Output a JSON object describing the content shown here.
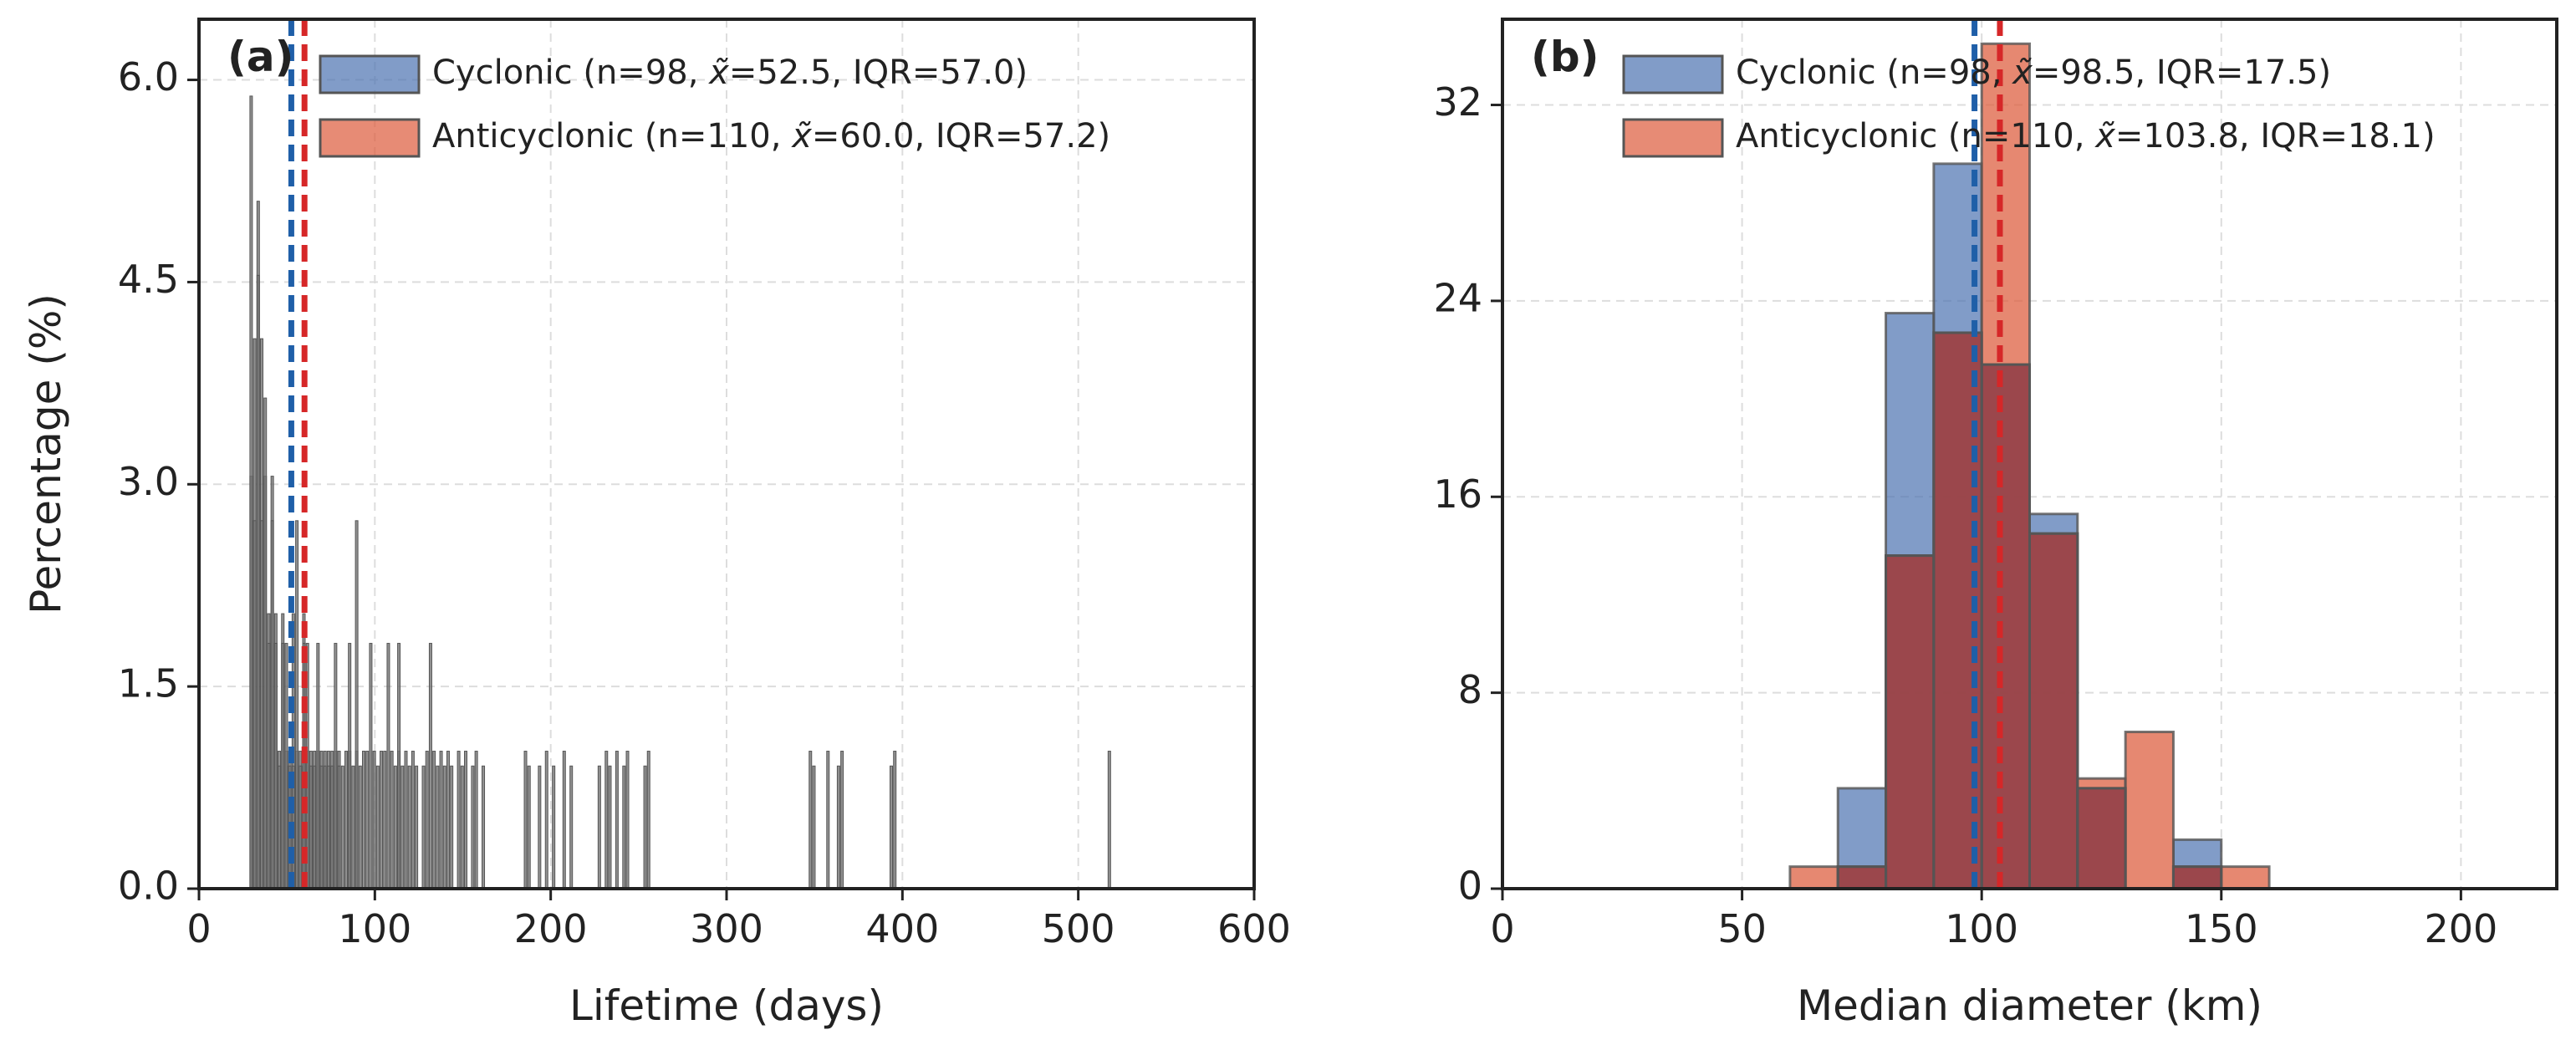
{
  "colors": {
    "cyclonic": "#4c72b0",
    "anticyclonic": "#dd5a3a",
    "cyclonic_line": "#1f5fa8",
    "anticyclonic_line": "#d62728",
    "overlap_dark": "#555555",
    "grid": "#dddddd",
    "axis": "#222222"
  },
  "chart_data": [
    {
      "type": "bar",
      "panel_label": "(a)",
      "title": "",
      "xlabel": "Lifetime (days)",
      "ylabel": "Percentage (%)",
      "xlim": [
        0,
        600
      ],
      "ylim": [
        0,
        6.45
      ],
      "xticks": [
        0,
        100,
        200,
        300,
        400,
        500,
        600
      ],
      "xtick_labels": [
        "0",
        "100",
        "200",
        "300",
        "400",
        "500",
        "600"
      ],
      "yticks": [
        0.0,
        1.5,
        3.0,
        4.5,
        6.0
      ],
      "ytick_labels": [
        "0.0",
        "1.5",
        "3.0",
        "4.5",
        "6.0"
      ],
      "grid": true,
      "legend_position": "top-right",
      "bin_width": 2,
      "series": [
        {
          "name": "Cyclonic (n=98, x̃=52.5, IQR=57.0)",
          "color_key": "cyclonic",
          "median": 52.5,
          "bins": [
            [
              29,
              3.06
            ],
            [
              31,
              4.08
            ],
            [
              33,
              5.1
            ],
            [
              35,
              4.08
            ],
            [
              37,
              3.06
            ],
            [
              39,
              2.04
            ],
            [
              41,
              3.06
            ],
            [
              43,
              2.04
            ],
            [
              45,
              1.02
            ],
            [
              47,
              2.04
            ],
            [
              49,
              1.02
            ],
            [
              51,
              1.02
            ],
            [
              53,
              2.04
            ],
            [
              55,
              1.02
            ],
            [
              57,
              1.02
            ],
            [
              59,
              2.04
            ],
            [
              61,
              1.02
            ],
            [
              63,
              1.02
            ],
            [
              65,
              1.02
            ],
            [
              67,
              1.02
            ],
            [
              69,
              1.02
            ],
            [
              71,
              1.02
            ],
            [
              73,
              1.02
            ],
            [
              75,
              1.02
            ],
            [
              77,
              1.02
            ],
            [
              79,
              1.02
            ],
            [
              83,
              1.02
            ],
            [
              85,
              1.02
            ],
            [
              89,
              1.02
            ],
            [
              93,
              1.02
            ],
            [
              95,
              1.02
            ],
            [
              99,
              1.02
            ],
            [
              103,
              1.02
            ],
            [
              105,
              1.02
            ],
            [
              109,
              1.02
            ],
            [
              113,
              1.02
            ],
            [
              117,
              1.02
            ],
            [
              121,
              1.02
            ],
            [
              129,
              1.02
            ],
            [
              133,
              1.02
            ],
            [
              137,
              1.02
            ],
            [
              141,
              1.02
            ],
            [
              147,
              1.02
            ],
            [
              151,
              1.02
            ],
            [
              157,
              1.02
            ],
            [
              185,
              1.02
            ],
            [
              197,
              1.02
            ],
            [
              207,
              1.02
            ],
            [
              231,
              1.02
            ],
            [
              237,
              1.02
            ],
            [
              243,
              1.02
            ],
            [
              255,
              1.02
            ],
            [
              347,
              1.02
            ],
            [
              357,
              1.02
            ],
            [
              365,
              1.02
            ],
            [
              395,
              1.02
            ],
            [
              517,
              1.02
            ]
          ]
        },
        {
          "name": "Anticyclonic (n=110, x̃=60.0, IQR=57.2)",
          "color_key": "anticyclonic",
          "median": 60.0,
          "bins": [
            [
              29,
              5.88
            ],
            [
              31,
              2.73
            ],
            [
              33,
              4.55
            ],
            [
              35,
              2.73
            ],
            [
              37,
              3.64
            ],
            [
              39,
              1.82
            ],
            [
              41,
              2.73
            ],
            [
              43,
              1.82
            ],
            [
              45,
              0.91
            ],
            [
              47,
              1.82
            ],
            [
              49,
              1.82
            ],
            [
              51,
              0.91
            ],
            [
              53,
              0.91
            ],
            [
              55,
              2.73
            ],
            [
              57,
              0.91
            ],
            [
              59,
              1.82
            ],
            [
              61,
              1.82
            ],
            [
              63,
              0.91
            ],
            [
              65,
              0.91
            ],
            [
              67,
              1.82
            ],
            [
              69,
              0.91
            ],
            [
              71,
              0.91
            ],
            [
              73,
              0.91
            ],
            [
              75,
              0.91
            ],
            [
              77,
              1.82
            ],
            [
              79,
              0.91
            ],
            [
              81,
              0.91
            ],
            [
              85,
              1.82
            ],
            [
              87,
              0.91
            ],
            [
              89,
              2.73
            ],
            [
              91,
              0.91
            ],
            [
              97,
              1.82
            ],
            [
              101,
              0.91
            ],
            [
              107,
              1.82
            ],
            [
              111,
              0.91
            ],
            [
              113,
              1.82
            ],
            [
              115,
              0.91
            ],
            [
              119,
              0.91
            ],
            [
              123,
              0.91
            ],
            [
              127,
              0.91
            ],
            [
              131,
              1.82
            ],
            [
              135,
              0.91
            ],
            [
              139,
              0.91
            ],
            [
              143,
              0.91
            ],
            [
              149,
              0.91
            ],
            [
              155,
              0.91
            ],
            [
              161,
              0.91
            ],
            [
              187,
              0.91
            ],
            [
              193,
              0.91
            ],
            [
              201,
              0.91
            ],
            [
              211,
              0.91
            ],
            [
              227,
              0.91
            ],
            [
              233,
              0.91
            ],
            [
              241,
              0.91
            ],
            [
              253,
              0.91
            ],
            [
              349,
              0.91
            ],
            [
              363,
              0.91
            ],
            [
              393,
              0.91
            ]
          ]
        }
      ]
    },
    {
      "type": "bar",
      "panel_label": "(b)",
      "title": "",
      "xlabel": "Median diameter (km)",
      "ylabel": "",
      "xlim": [
        0,
        220
      ],
      "ylim": [
        0,
        35.5
      ],
      "xticks": [
        0,
        50,
        100,
        150,
        200
      ],
      "xtick_labels": [
        "0",
        "50",
        "100",
        "150",
        "200"
      ],
      "yticks": [
        0,
        8,
        16,
        24,
        32
      ],
      "ytick_labels": [
        "0",
        "8",
        "16",
        "24",
        "32"
      ],
      "grid": true,
      "legend_position": "top-right",
      "bin_width": 10,
      "series": [
        {
          "name": "Cyclonic (n=98, x̃=98.5, IQR=17.5)",
          "color_key": "cyclonic",
          "median": 98.5,
          "bins": [
            [
              65,
              0
            ],
            [
              75,
              4.1
            ],
            [
              85,
              23.5
            ],
            [
              95,
              29.6
            ],
            [
              105,
              21.4
            ],
            [
              115,
              15.3
            ],
            [
              125,
              4.1
            ],
            [
              135,
              0
            ],
            [
              145,
              2.0
            ],
            [
              155,
              0
            ]
          ]
        },
        {
          "name": "Anticyclonic (n=110, x̃=103.8, IQR=18.1)",
          "color_key": "anticyclonic",
          "median": 103.8,
          "bins": [
            [
              65,
              0.9
            ],
            [
              75,
              0.9
            ],
            [
              85,
              13.6
            ],
            [
              95,
              22.7
            ],
            [
              105,
              34.5
            ],
            [
              115,
              14.5
            ],
            [
              125,
              4.5
            ],
            [
              135,
              6.4
            ],
            [
              145,
              0.9
            ],
            [
              155,
              0.9
            ]
          ]
        }
      ]
    }
  ]
}
